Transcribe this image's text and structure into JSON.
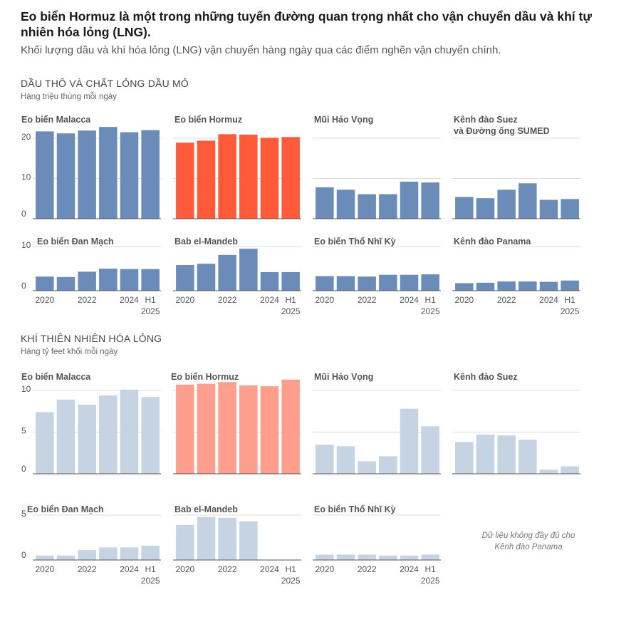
{
  "header": {
    "title": "Eo biển Hormuz là một trong những tuyến đường quan trọng nhất cho vận chuyển dầu và khí tự nhiên hóa lỏng (LNG).",
    "subtitle": "Khối lượng dầu và khí hóa lỏng (LNG) vận chuyển hàng ngày qua các điểm nghẽn vận chuyển chính."
  },
  "sections": {
    "oil": {
      "title": "DẦU THÔ VÀ CHẤT LỎNG DẦU MỎ",
      "unit": "Hàng triệu thùng mỗi ngày"
    },
    "lng": {
      "title": "KHÍ THIÊN NHIÊN HÓA LỎNG",
      "unit": "Hàng tỷ feet khối mỗi ngày"
    }
  },
  "note": "Dữ liệu không đầy đủ cho Kênh đào Panama",
  "colors": {
    "oil_bar": "#6b8cb8",
    "oil_highlight": "#ff5a3a",
    "lng_bar": "#c5d3e3",
    "lng_highlight": "#fe9e8c",
    "grid": "#dddddd",
    "axis": "#555555"
  },
  "chart_data": [
    {
      "type": "bar",
      "section": "oil",
      "x_tick_labels": [
        "2020",
        "2022",
        "2024",
        "H1",
        "2025"
      ],
      "ylim_row1": [
        0,
        20
      ],
      "ylim_row2": [
        0,
        10
      ],
      "y_ticks_row1": [
        0,
        10,
        20
      ],
      "y_ticks_row2": [
        0,
        10
      ],
      "categories": [
        "2020",
        "2021",
        "2022",
        "2023",
        "2024",
        "H1 2025"
      ],
      "panels": [
        {
          "name": "Eo biển Malacca",
          "values": [
            21.7,
            21.2,
            21.9,
            22.8,
            21.5,
            22.0
          ],
          "highlight": false
        },
        {
          "name": "Eo biển Hormuz",
          "values": [
            18.9,
            19.4,
            21.0,
            20.9,
            20.1,
            20.3
          ],
          "highlight": true
        },
        {
          "name": "Mũi Hảo Vọng",
          "values": [
            7.8,
            7.2,
            6.1,
            6.1,
            9.2,
            9.0
          ],
          "highlight": false
        },
        {
          "name": "Kênh đào Suez và Đường ống SUMED",
          "values": [
            5.4,
            5.1,
            7.2,
            8.8,
            4.7,
            4.9
          ],
          "highlight": false
        },
        {
          "name": "Eo biển Đan Mạch",
          "values": [
            3.2,
            3.1,
            4.3,
            5.0,
            4.9,
            4.9
          ],
          "highlight": false
        },
        {
          "name": "Bab el-Mandeb",
          "values": [
            5.8,
            6.1,
            8.1,
            9.5,
            4.2,
            4.2
          ],
          "highlight": false
        },
        {
          "name": "Eo biển Thổ Nhĩ Kỳ",
          "values": [
            3.3,
            3.3,
            3.2,
            3.6,
            3.6,
            3.7
          ],
          "highlight": false
        },
        {
          "name": "Kênh đào Panama",
          "values": [
            1.7,
            1.8,
            2.1,
            2.1,
            2.0,
            2.3
          ],
          "highlight": false
        }
      ]
    },
    {
      "type": "bar",
      "section": "lng",
      "x_tick_labels": [
        "2020",
        "2022",
        "2024",
        "H1",
        "2025"
      ],
      "ylim_row1": [
        0,
        10
      ],
      "ylim_row2": [
        0,
        5
      ],
      "y_ticks_row1": [
        0,
        5,
        10
      ],
      "y_ticks_row2": [
        0,
        5
      ],
      "categories": [
        "2020",
        "2021",
        "2022",
        "2023",
        "2024",
        "H1 2025"
      ],
      "panels": [
        {
          "name": "Eo biển Malacca",
          "values": [
            7.4,
            8.9,
            8.3,
            9.4,
            10.1,
            9.2
          ],
          "highlight": false
        },
        {
          "name": "Eo biển Hormuz",
          "values": [
            10.7,
            10.8,
            11.0,
            10.6,
            10.5,
            11.3
          ],
          "highlight": true
        },
        {
          "name": "Mũi Hảo Vọng",
          "values": [
            3.5,
            3.3,
            1.5,
            2.1,
            7.8,
            5.7
          ],
          "highlight": false
        },
        {
          "name": "Kênh đào Suez",
          "values": [
            3.8,
            4.7,
            4.6,
            4.1,
            0.5,
            0.9
          ],
          "highlight": false
        },
        {
          "name": "Eo biển Đan Mạch",
          "values": [
            0.5,
            0.5,
            1.1,
            1.4,
            1.4,
            1.6
          ],
          "highlight": false
        },
        {
          "name": "Bab el-Mandeb",
          "values": [
            3.9,
            4.8,
            4.7,
            4.3,
            null,
            null
          ],
          "highlight": false
        },
        {
          "name": "Eo biển Thổ Nhĩ Kỳ",
          "values": [
            0.6,
            0.6,
            0.6,
            0.5,
            0.5,
            0.6
          ],
          "highlight": false
        }
      ]
    }
  ]
}
